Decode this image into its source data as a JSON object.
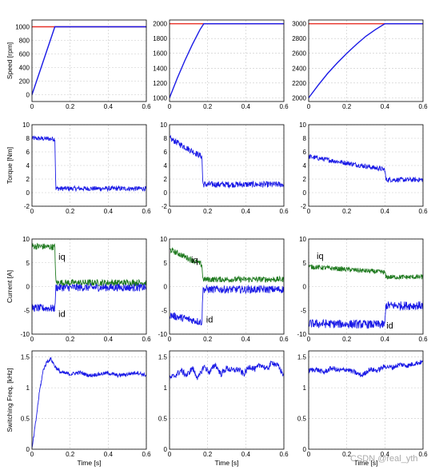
{
  "colors": {
    "reference": "#e8322a",
    "series_blue": "#1a1ae6",
    "series_green": "#1f7a1f",
    "grid": "#c8c8c8"
  },
  "watermark": "CSDN @real_yth",
  "chart_data": [
    {
      "type": "line",
      "xlabel": "",
      "ylabel": "Speed [rpm]",
      "xlim": [
        0,
        0.6
      ],
      "ylim": [
        -100,
        1100
      ],
      "xticks": [
        "0",
        "0.2",
        "0.4",
        "0.6"
      ],
      "yticks": [
        "0",
        "200",
        "400",
        "600",
        "800",
        "1000"
      ],
      "series": [
        {
          "color": "reference",
          "x": [
            0,
            0.6
          ],
          "values": [
            1000,
            1000
          ]
        },
        {
          "color": "series_blue",
          "x": [
            0,
            0.12,
            0.6
          ],
          "values": [
            0,
            1000,
            1000
          ]
        }
      ]
    },
    {
      "type": "line",
      "xlabel": "",
      "ylabel": "",
      "xlim": [
        0,
        0.6
      ],
      "ylim": [
        950,
        2050
      ],
      "xticks": [
        "0",
        "0.2",
        "0.4",
        "0.6"
      ],
      "yticks": [
        "1000",
        "1200",
        "1400",
        "1600",
        "1800",
        "2000"
      ],
      "series": [
        {
          "color": "reference",
          "x": [
            0,
            0.6
          ],
          "values": [
            2000,
            2000
          ]
        },
        {
          "color": "series_blue",
          "x": [
            0,
            0.04,
            0.08,
            0.12,
            0.16,
            0.18,
            0.6
          ],
          "values": [
            1000,
            1260,
            1500,
            1720,
            1920,
            2000,
            2000
          ]
        }
      ]
    },
    {
      "type": "line",
      "xlabel": "",
      "ylabel": "",
      "xlim": [
        0,
        0.6
      ],
      "ylim": [
        1950,
        3050
      ],
      "xticks": [
        "0",
        "0.2",
        "0.4",
        "0.6"
      ],
      "yticks": [
        "2000",
        "2200",
        "2400",
        "2600",
        "2800",
        "3000"
      ],
      "series": [
        {
          "color": "reference",
          "x": [
            0,
            0.6
          ],
          "values": [
            3000,
            3000
          ]
        },
        {
          "color": "series_blue",
          "x": [
            0,
            0.05,
            0.1,
            0.15,
            0.2,
            0.25,
            0.3,
            0.35,
            0.4,
            0.6
          ],
          "values": [
            2000,
            2170,
            2330,
            2470,
            2600,
            2720,
            2830,
            2920,
            3000,
            3000
          ]
        }
      ]
    },
    {
      "type": "line",
      "xlabel": "",
      "ylabel": "Torque [Nm]",
      "xlim": [
        0,
        0.6
      ],
      "ylim": [
        -2,
        10
      ],
      "xticks": [
        "0",
        "0.2",
        "0.4",
        "0.6"
      ],
      "yticks": [
        "-2",
        "0",
        "2",
        "4",
        "6",
        "8",
        "10"
      ],
      "series": [
        {
          "color": "series_blue",
          "x": [
            0,
            0.12,
            0.125,
            0.6
          ],
          "values": [
            8,
            7.9,
            0.6,
            0.6
          ],
          "noise": 0.35
        }
      ]
    },
    {
      "type": "line",
      "xlabel": "",
      "ylabel": "",
      "xlim": [
        0,
        0.6
      ],
      "ylim": [
        -2,
        10
      ],
      "xticks": [
        "0",
        "0.2",
        "0.4",
        "0.6"
      ],
      "yticks": [
        "-2",
        "0",
        "2",
        "4",
        "6",
        "8",
        "10"
      ],
      "series": [
        {
          "color": "series_blue",
          "x": [
            0,
            0.17,
            0.175,
            0.6
          ],
          "values": [
            8,
            5.3,
            1.2,
            1.2
          ],
          "noise": 0.45
        }
      ]
    },
    {
      "type": "line",
      "xlabel": "",
      "ylabel": "",
      "xlim": [
        0,
        0.6
      ],
      "ylim": [
        -2,
        10
      ],
      "xticks": [
        "0",
        "0.2",
        "0.4",
        "0.6"
      ],
      "yticks": [
        "-2",
        "0",
        "2",
        "4",
        "6",
        "8",
        "10"
      ],
      "series": [
        {
          "color": "series_blue",
          "x": [
            0,
            0.4,
            0.405,
            0.6
          ],
          "values": [
            5.3,
            3.4,
            1.9,
            1.9
          ],
          "noise": 0.35
        }
      ]
    },
    {
      "type": "line",
      "xlabel": "",
      "ylabel": "Current [A]",
      "xlim": [
        0,
        0.6
      ],
      "ylim": [
        -10,
        10
      ],
      "xticks": [
        "0",
        "0.2",
        "0.4",
        "0.6"
      ],
      "yticks": [
        "-10",
        "-5",
        "0",
        "5",
        "10"
      ],
      "annotations": [
        "iq",
        "id"
      ],
      "series": [
        {
          "color": "series_green",
          "x": [
            0,
            0.12,
            0.125,
            0.6
          ],
          "values": [
            8.5,
            8.3,
            0.8,
            0.8
          ],
          "noise": 0.7
        },
        {
          "color": "series_blue",
          "x": [
            0,
            0.12,
            0.125,
            0.6
          ],
          "values": [
            -4.5,
            -4.6,
            -0.2,
            -0.2
          ],
          "noise": 0.8
        }
      ]
    },
    {
      "type": "line",
      "xlabel": "",
      "ylabel": "",
      "xlim": [
        0,
        0.6
      ],
      "ylim": [
        -10,
        10
      ],
      "xticks": [
        "0",
        "0.2",
        "0.4",
        "0.6"
      ],
      "yticks": [
        "-10",
        "-5",
        "0",
        "5",
        "10"
      ],
      "annotations": [
        "iq",
        "id"
      ],
      "series": [
        {
          "color": "series_green",
          "x": [
            0,
            0.17,
            0.175,
            0.6
          ],
          "values": [
            7.8,
            4.6,
            1.5,
            1.5
          ],
          "noise": 0.6
        },
        {
          "color": "series_blue",
          "x": [
            0,
            0.17,
            0.175,
            0.6
          ],
          "values": [
            -6,
            -7.5,
            -0.6,
            -0.6
          ],
          "noise": 0.8
        }
      ]
    },
    {
      "type": "line",
      "xlabel": "",
      "ylabel": "",
      "xlim": [
        0,
        0.6
      ],
      "ylim": [
        -10,
        10
      ],
      "xticks": [
        "0",
        "0.2",
        "0.4",
        "0.6"
      ],
      "yticks": [
        "-10",
        "-5",
        "0",
        "5",
        "10"
      ],
      "annotations": [
        "iq",
        "id"
      ],
      "series": [
        {
          "color": "series_green",
          "x": [
            0,
            0.4,
            0.405,
            0.6
          ],
          "values": [
            4.2,
            3,
            2,
            2
          ],
          "noise": 0.5
        },
        {
          "color": "series_blue",
          "x": [
            0,
            0.4,
            0.405,
            0.6
          ],
          "values": [
            -7.8,
            -8,
            -4,
            -4
          ],
          "noise": 0.9
        }
      ]
    },
    {
      "type": "line",
      "xlabel": "Time [s]",
      "ylabel": "Switching Freq. [kHz]",
      "xlim": [
        0,
        0.6
      ],
      "ylim": [
        0,
        1.6
      ],
      "xticks": [
        "0",
        "0.2",
        "0.4",
        "0.6"
      ],
      "yticks": [
        "0",
        "0.5",
        "1",
        "1.5"
      ],
      "series": [
        {
          "color": "series_blue",
          "x": [
            0,
            0.02,
            0.04,
            0.06,
            0.08,
            0.1,
            0.12,
            0.15,
            0.2,
            0.25,
            0.3,
            0.35,
            0.4,
            0.45,
            0.5,
            0.55,
            0.6
          ],
          "values": [
            0,
            0.45,
            0.95,
            1.3,
            1.43,
            1.47,
            1.35,
            1.25,
            1.22,
            1.25,
            1.2,
            1.22,
            1.24,
            1.2,
            1.22,
            1.25,
            1.2
          ],
          "noise": 0.03
        }
      ]
    },
    {
      "type": "line",
      "xlabel": "Time [s]",
      "ylabel": "",
      "xlim": [
        0,
        0.6
      ],
      "ylim": [
        0,
        1.6
      ],
      "xticks": [
        "0",
        "0.2",
        "0.4",
        "0.6"
      ],
      "yticks": [
        "0",
        "0.5",
        "1",
        "1.5"
      ],
      "series": [
        {
          "color": "series_blue",
          "x": [
            0,
            0.03,
            0.06,
            0.09,
            0.12,
            0.15,
            0.18,
            0.21,
            0.24,
            0.27,
            0.3,
            0.33,
            0.36,
            0.39,
            0.42,
            0.45,
            0.48,
            0.51,
            0.54,
            0.57,
            0.6
          ],
          "values": [
            1.15,
            1.2,
            1.28,
            1.2,
            1.32,
            1.15,
            1.35,
            1.25,
            1.38,
            1.22,
            1.32,
            1.28,
            1.3,
            1.22,
            1.35,
            1.3,
            1.38,
            1.3,
            1.42,
            1.35,
            1.2
          ],
          "noise": 0.05
        }
      ]
    },
    {
      "type": "line",
      "xlabel": "Time [s]",
      "ylabel": "",
      "xlim": [
        0,
        0.6
      ],
      "ylim": [
        0,
        1.6
      ],
      "xticks": [
        "0",
        "0.2",
        "0.4",
        "0.6"
      ],
      "yticks": [
        "0",
        "0.5",
        "1",
        "1.5"
      ],
      "series": [
        {
          "color": "series_blue",
          "x": [
            0,
            0.04,
            0.08,
            0.12,
            0.16,
            0.2,
            0.24,
            0.28,
            0.32,
            0.36,
            0.4,
            0.44,
            0.48,
            0.52,
            0.56,
            0.6
          ],
          "values": [
            1.28,
            1.3,
            1.25,
            1.32,
            1.28,
            1.3,
            1.25,
            1.2,
            1.3,
            1.28,
            1.35,
            1.33,
            1.38,
            1.36,
            1.4,
            1.42
          ],
          "noise": 0.04
        }
      ]
    }
  ]
}
